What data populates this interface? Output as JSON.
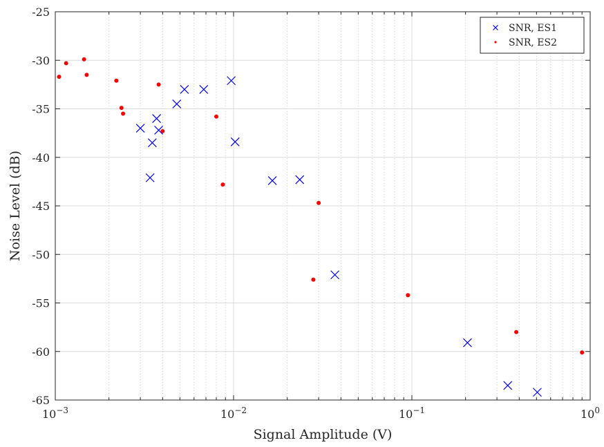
{
  "chart_data": {
    "type": "scatter",
    "title": "",
    "xlabel": "Signal Amplitude (V)",
    "ylabel": "Noise Level (dB)",
    "xscale": "log",
    "xlim": [
      0.001,
      1
    ],
    "ylim": [
      -65,
      -25
    ],
    "x_ticks": [
      {
        "value": 0.001,
        "base": "10",
        "exp": "−3"
      },
      {
        "value": 0.01,
        "base": "10",
        "exp": "−2"
      },
      {
        "value": 0.1,
        "base": "10",
        "exp": "−1"
      },
      {
        "value": 1,
        "base": "10",
        "exp": "0"
      }
    ],
    "y_ticks": [
      -25,
      -30,
      -35,
      -40,
      -45,
      -50,
      -55,
      -60,
      -65
    ],
    "grid": true,
    "minor_grid": true,
    "legend_position": "top-right",
    "series": [
      {
        "name": "SNR, ES1",
        "marker": "x",
        "color": "#0000ff",
        "points": [
          [
            0.003,
            -37.0
          ],
          [
            0.0034,
            -42.1
          ],
          [
            0.0035,
            -38.5
          ],
          [
            0.0037,
            -36.0
          ],
          [
            0.0038,
            -37.2
          ],
          [
            0.0048,
            -34.5
          ],
          [
            0.0053,
            -33.0
          ],
          [
            0.0068,
            -33.0
          ],
          [
            0.0097,
            -32.1
          ],
          [
            0.0102,
            -38.4
          ],
          [
            0.0165,
            -42.4
          ],
          [
            0.0235,
            -42.3
          ],
          [
            0.037,
            -52.1
          ],
          [
            0.205,
            -59.1
          ],
          [
            0.345,
            -63.5
          ],
          [
            0.505,
            -64.2
          ]
        ]
      },
      {
        "name": "SNR, ES2",
        "marker": "dot",
        "color": "#ff0000",
        "points": [
          [
            0.00105,
            -31.7
          ],
          [
            0.00115,
            -30.3
          ],
          [
            0.00145,
            -29.9
          ],
          [
            0.0015,
            -31.5
          ],
          [
            0.0022,
            -32.1
          ],
          [
            0.00235,
            -34.9
          ],
          [
            0.0024,
            -35.5
          ],
          [
            0.0038,
            -32.5
          ],
          [
            0.004,
            -37.3
          ],
          [
            0.008,
            -35.8
          ],
          [
            0.0087,
            -42.8
          ],
          [
            0.028,
            -52.6
          ],
          [
            0.03,
            -44.7
          ],
          [
            0.095,
            -54.2
          ],
          [
            0.385,
            -58.0
          ],
          [
            0.9,
            -60.1
          ]
        ]
      }
    ]
  }
}
